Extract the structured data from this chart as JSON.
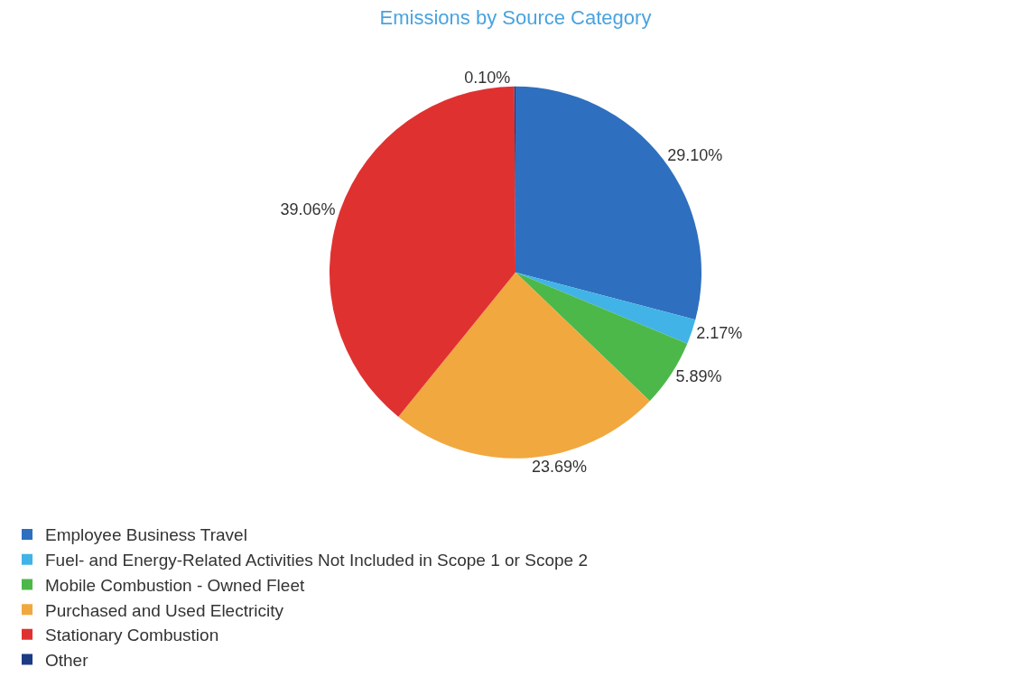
{
  "chart_data": {
    "type": "pie",
    "title": "Emissions by Source Category",
    "categories": [
      "Employee Business Travel",
      "Fuel- and Energy-Related Activities Not Included in Scope 1 or Scope 2",
      "Mobile Combustion - Owned Fleet",
      "Purchased and Used Electricity",
      "Stationary Combustion",
      "Other"
    ],
    "values": [
      29.1,
      2.17,
      5.89,
      23.69,
      39.06,
      0.1
    ],
    "colors": [
      "#2f6fbf",
      "#41b3e6",
      "#4cb84a",
      "#f0a83f",
      "#e03131",
      "#1b3c85"
    ],
    "value_labels": [
      "29.10%",
      "2.17%",
      "5.89%",
      "23.69%",
      "39.06%",
      "0.10%"
    ],
    "legend": "bottom left"
  }
}
